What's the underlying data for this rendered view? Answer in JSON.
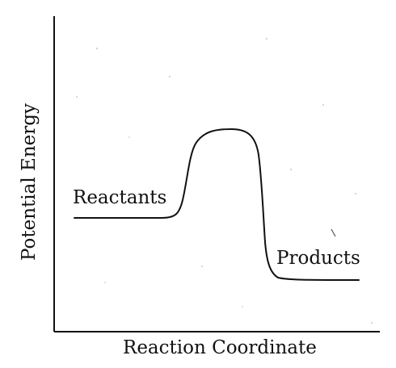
{
  "axes": {
    "x_label": "Reaction Coordinate",
    "y_label": "Potential Energy"
  },
  "curve_labels": {
    "reactants": "Reactants",
    "products": "Products"
  },
  "colors": {
    "ink": "#111111",
    "background": "#ffffff"
  }
}
